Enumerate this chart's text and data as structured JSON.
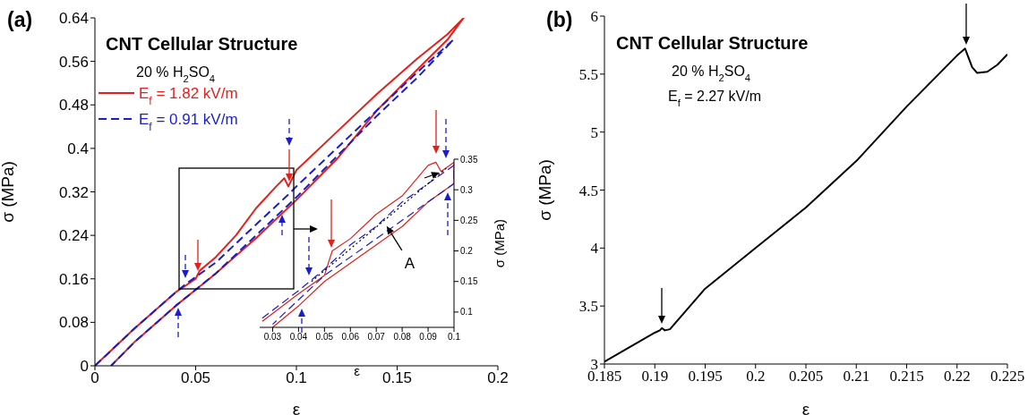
{
  "chart_data": [
    {
      "type": "line",
      "title": "CNT Cellular Structure",
      "xlabel": "ε",
      "ylabel": "σ (MPa)",
      "xlim": [
        0,
        0.2
      ],
      "ylim": [
        0,
        0.64
      ],
      "xticks": [
        0,
        0.05,
        0.1,
        0.15,
        0.2
      ],
      "yticks": [
        0,
        0.08,
        0.16,
        0.24,
        0.32,
        0.4,
        0.48,
        0.56,
        0.64
      ],
      "legend": "top left",
      "annotations": [
        "(a)",
        "20 % H$_{2}$SO$_{4}$"
      ],
      "series": [
        {
          "name": "E$_{f}$ = 1.82 kV/m",
          "color": "#e3201b",
          "line_style": "solid",
          "x": [
            0,
            0.02,
            0.04,
            0.05,
            0.052,
            0.06,
            0.07,
            0.08,
            0.09,
            0.094,
            0.096,
            0.1,
            0.12,
            0.14,
            0.16,
            0.175,
            0.183,
            0.175,
            0.16,
            0.14,
            0.12,
            0.1,
            0.08,
            0.06,
            0.05,
            0.04,
            0.02,
            0.008
          ],
          "values": [
            0,
            0.07,
            0.135,
            0.16,
            0.175,
            0.2,
            0.24,
            0.29,
            0.33,
            0.345,
            0.33,
            0.36,
            0.43,
            0.5,
            0.565,
            0.61,
            0.64,
            0.6,
            0.545,
            0.47,
            0.38,
            0.305,
            0.235,
            0.17,
            0.14,
            0.11,
            0.045,
            0
          ]
        },
        {
          "name": "E$_{f}$ = 0.91 kV/m",
          "color": "#1c1ccf",
          "line_style": "dashed",
          "x": [
            0,
            0.02,
            0.04,
            0.045,
            0.06,
            0.08,
            0.096,
            0.1,
            0.12,
            0.14,
            0.16,
            0.178,
            0.16,
            0.14,
            0.12,
            0.1,
            0.08,
            0.06,
            0.04,
            0.02,
            0.008
          ],
          "values": [
            0,
            0.07,
            0.135,
            0.15,
            0.19,
            0.26,
            0.315,
            0.33,
            0.4,
            0.47,
            0.54,
            0.6,
            0.53,
            0.46,
            0.385,
            0.31,
            0.24,
            0.17,
            0.11,
            0.045,
            0
          ]
        }
      ]
    },
    {
      "type": "line",
      "xlabel": "ε",
      "ylabel": "σ (MPa)",
      "xlim": [
        0.025,
        0.1
      ],
      "ylim": [
        0.075,
        0.35
      ],
      "xticks": [
        0.03,
        0.04,
        0.05,
        0.06,
        0.07,
        0.08,
        0.09,
        0.1
      ],
      "yticks": [
        0.1,
        0.15,
        0.2,
        0.25,
        0.3,
        0.35
      ],
      "annotations": [
        {
          "text": "A",
          "x": 0.074,
          "y": 0.245
        }
      ],
      "series": [
        {
          "color": "#e3201b",
          "line_style": "solid",
          "x": [
            0.026,
            0.04,
            0.05,
            0.053,
            0.06,
            0.07,
            0.08,
            0.09,
            0.093,
            0.095,
            0.1,
            0.1,
            0.09,
            0.08,
            0.07,
            0.06,
            0.05,
            0.04,
            0.03
          ],
          "values": [
            0.085,
            0.13,
            0.16,
            0.2,
            0.22,
            0.26,
            0.29,
            0.34,
            0.345,
            0.33,
            0.345,
            0.31,
            0.28,
            0.24,
            0.21,
            0.18,
            0.15,
            0.11,
            0.075
          ]
        },
        {
          "color": "#1c1ccf",
          "line_style": "dashed",
          "x": [
            0.026,
            0.04,
            0.05,
            0.06,
            0.07,
            0.08,
            0.09,
            0.1,
            0.1,
            0.09,
            0.08,
            0.07,
            0.06,
            0.05,
            0.04,
            0.03
          ],
          "values": [
            0.09,
            0.135,
            0.17,
            0.21,
            0.24,
            0.28,
            0.31,
            0.34,
            0.31,
            0.28,
            0.25,
            0.22,
            0.19,
            0.16,
            0.12,
            0.08
          ]
        },
        {
          "color": "#000000",
          "line_style": "dotted",
          "x": [
            0.045,
            0.097
          ],
          "values": [
            0.15,
            0.335
          ]
        }
      ]
    },
    {
      "type": "line",
      "title": "CNT Cellular Structure",
      "xlabel": "ε",
      "ylabel": "σ (MPa)",
      "xlim": [
        0.185,
        0.225
      ],
      "ylim": [
        3,
        6
      ],
      "xticks": [
        0.185,
        0.19,
        0.195,
        0.2,
        0.205,
        0.21,
        0.215,
        0.22,
        0.225
      ],
      "yticks": [
        3,
        3.5,
        4,
        4.5,
        5,
        5.5,
        6
      ],
      "annotations": [
        "(b)",
        "20 % H$_{2}$SO$_{4}$",
        "E$_{f}$ = 2.27 kV/m"
      ],
      "series": [
        {
          "color": "#000000",
          "line_style": "solid",
          "x": [
            0.185,
            0.19,
            0.1905,
            0.1907,
            0.191,
            0.1915,
            0.193,
            0.195,
            0.2,
            0.205,
            0.21,
            0.215,
            0.22,
            0.2208,
            0.2215,
            0.222,
            0.223,
            0.224,
            0.225
          ],
          "values": [
            3.02,
            3.27,
            3.29,
            3.31,
            3.29,
            3.3,
            3.45,
            3.65,
            4,
            4.35,
            4.75,
            5.22,
            5.66,
            5.72,
            5.56,
            5.51,
            5.52,
            5.58,
            5.67
          ]
        }
      ]
    }
  ]
}
